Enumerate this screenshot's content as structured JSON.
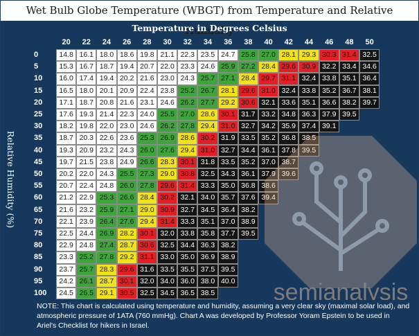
{
  "title": "Wet Bulb Globe Temperature (WBGT) from Temperature and Relative Humidity",
  "note": "NOTE: This chart is calculated using temperature and humidity, assuming a very clear sky (maximal solar load), and atmospheric pressure of 1ATA (760 mmHg). Chart A was developed by Professor Yoram Epstein to be used in Ariel's Checklist for hikers in Israel.",
  "watermark_text": "semianalysis",
  "colors": {
    "background": "#17385d",
    "white": "#ffffff",
    "green": "#3ea43b",
    "yellow": "#f2e21a",
    "red": "#e31e24",
    "black": "#141414",
    "watermark": "#f6c79a"
  },
  "chart_data": {
    "type": "table",
    "title": "Wet Bulb Globe Temperature (WBGT) from Temperature and Relative Humidity",
    "xlabel": "Temperature in Degrees Celsius",
    "ylabel": "Relative Humidity (%)",
    "columns": [
      20,
      22,
      24,
      26,
      28,
      30,
      32,
      34,
      36,
      38,
      40,
      42,
      44,
      46,
      48,
      50
    ],
    "rows": [
      0,
      5,
      10,
      15,
      20,
      25,
      30,
      35,
      40,
      45,
      50,
      55,
      60,
      65,
      70,
      75,
      80,
      85,
      90,
      95,
      100
    ],
    "values": [
      [
        14.8,
        16.1,
        18.0,
        18.6,
        19.8,
        21.1,
        22.3,
        23.5,
        24.7,
        25.8,
        27.0,
        28.1,
        29.3,
        30.3,
        31.4,
        32.5
      ],
      [
        15.3,
        16.7,
        18.7,
        19.4,
        20.7,
        22.0,
        23.3,
        24.6,
        25.9,
        27.2,
        28.4,
        29.6,
        30.9,
        32.2,
        33.4,
        34.6
      ],
      [
        16.0,
        17.4,
        19.4,
        20.2,
        21.6,
        23.0,
        24.3,
        25.7,
        27.1,
        28.4,
        29.7,
        31.1,
        32.4,
        33.8,
        35.1,
        36.4
      ],
      [
        16.5,
        18.0,
        20.1,
        20.9,
        22.4,
        23.8,
        25.2,
        26.7,
        28.1,
        29.6,
        31.0,
        32.4,
        33.8,
        35.2,
        36.7,
        38.1
      ],
      [
        17.1,
        18.7,
        20.8,
        21.6,
        23.1,
        24.6,
        26.2,
        27.7,
        29.2,
        30.6,
        32.1,
        33.6,
        35.1,
        36.6,
        38.2,
        39.7
      ],
      [
        17.6,
        19.3,
        21.4,
        22.3,
        24.0,
        25.5,
        27.0,
        28.6,
        30.1,
        31.7,
        33.2,
        34.8,
        36.3,
        37.9,
        39.5,
        null
      ],
      [
        18.2,
        19.8,
        22.0,
        23.0,
        24.6,
        26.2,
        27.8,
        29.4,
        31.0,
        32.7,
        34.2,
        35.9,
        37.4,
        39.1,
        null,
        null
      ],
      [
        18.7,
        20.3,
        22.6,
        23.6,
        25.3,
        26.9,
        28.6,
        30.2,
        31.9,
        33.5,
        35.2,
        36.8,
        38.5,
        null,
        null,
        null
      ],
      [
        19.3,
        20.9,
        23.2,
        24.3,
        26.0,
        27.6,
        29.4,
        31.0,
        32.7,
        34.4,
        36.1,
        37.8,
        39.5,
        null,
        null,
        null
      ],
      [
        19.7,
        21.5,
        23.8,
        24.9,
        26.6,
        28.3,
        30.1,
        31.8,
        33.5,
        35.2,
        37.0,
        38.7,
        null,
        null,
        null,
        null
      ],
      [
        20.2,
        22.0,
        24.3,
        25.5,
        27.3,
        29.0,
        30.8,
        32.5,
        34.3,
        36.1,
        37.9,
        39.6,
        null,
        null,
        null,
        null
      ],
      [
        20.7,
        22.4,
        24.8,
        26.0,
        27.8,
        29.6,
        31.4,
        33.3,
        35.0,
        36.8,
        38.6,
        null,
        null,
        null,
        null,
        null
      ],
      [
        21.2,
        22.9,
        25.3,
        26.6,
        28.4,
        30.2,
        32.1,
        34.0,
        35.7,
        37.6,
        39.4,
        null,
        null,
        null,
        null,
        null
      ],
      [
        21.6,
        23.2,
        25.9,
        27.1,
        29.0,
        30.9,
        32.7,
        34.5,
        36.4,
        38.2,
        null,
        null,
        null,
        null,
        null,
        null
      ],
      [
        22.1,
        23.9,
        26.4,
        27.6,
        29.4,
        31.4,
        33.3,
        35.1,
        37.0,
        38.9,
        null,
        null,
        null,
        null,
        null,
        null
      ],
      [
        22.5,
        24.4,
        26.9,
        28.2,
        30.1,
        32.0,
        33.8,
        35.8,
        37.7,
        39.5,
        null,
        null,
        null,
        null,
        null,
        null
      ],
      [
        22.9,
        24.8,
        27.4,
        28.7,
        30.6,
        32.5,
        34.4,
        36.3,
        38.2,
        null,
        null,
        null,
        null,
        null,
        null,
        null
      ],
      [
        23.3,
        25.2,
        27.8,
        29.2,
        31.1,
        33.0,
        35.0,
        36.9,
        38.9,
        null,
        null,
        null,
        null,
        null,
        null,
        null
      ],
      [
        23.7,
        25.7,
        28.3,
        29.6,
        31.6,
        33.5,
        35.5,
        37.5,
        39.5,
        null,
        null,
        null,
        null,
        null,
        null,
        null
      ],
      [
        24.2,
        26.1,
        28.7,
        30.1,
        32.0,
        34.0,
        36.0,
        38.0,
        40.0,
        null,
        null,
        null,
        null,
        null,
        null,
        null
      ],
      [
        24.5,
        26.5,
        29.1,
        30.5,
        32.5,
        34.5,
        36.5,
        38.5,
        null,
        null,
        null,
        null,
        null,
        null,
        null,
        null
      ]
    ],
    "color_bands": [
      {
        "range": "below 25",
        "color": "white"
      },
      {
        "range": "25 to 27.9",
        "color": "green"
      },
      {
        "range": "28 to 29.4",
        "color": "yellow"
      },
      {
        "range": "29.5 to 31.4",
        "color": "red"
      },
      {
        "range": "31.5 and above",
        "color": "black"
      }
    ]
  }
}
